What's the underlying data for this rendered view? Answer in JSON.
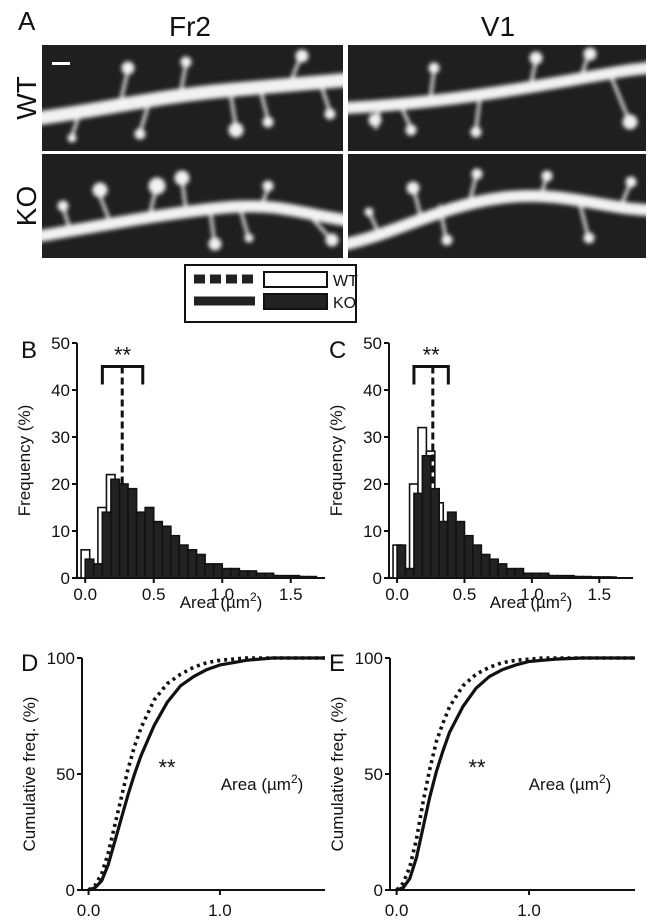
{
  "panel_a": {
    "letter": "A",
    "columns": [
      "Fr2",
      "V1"
    ],
    "rows": [
      "WT",
      "KO"
    ]
  },
  "legend": {
    "entries": [
      {
        "label": "WT",
        "line": "dashed",
        "bar": "open"
      },
      {
        "label": "KO",
        "line": "solid",
        "bar": "filled"
      }
    ]
  },
  "significance": "**",
  "chart_data": [
    {
      "panel": "B",
      "type": "bar",
      "xlabel": "Area (µm",
      "xlabel_sup": "2",
      "xlabel_end": ")",
      "ylabel": "Frequency (%)",
      "xlim": [
        -0.06,
        1.75
      ],
      "ylim": [
        0,
        50
      ],
      "xticks": [
        "0.0",
        "0.5",
        "1.0",
        "1.5"
      ],
      "yticks": [
        "0",
        "10",
        "20",
        "30",
        "40",
        "50"
      ],
      "bin_width": 0.0625,
      "series": [
        {
          "name": "WT",
          "style": "open",
          "x": [
            -0.03,
            0.0925,
            0.155,
            0.2175,
            0.28,
            0.3425,
            0.405,
            0.4675,
            0.53,
            0.5925,
            0.655,
            0.7175,
            0.78,
            0.8425,
            0.905,
            0.9675,
            1.03,
            1.0925,
            1.155,
            1.2175,
            1.28,
            1.3425,
            1.405,
            1.4675,
            1.53,
            1.5925
          ],
          "values": [
            6,
            15,
            22,
            20,
            17,
            12,
            10,
            8,
            6,
            5,
            4,
            3,
            2,
            2,
            2,
            1,
            1,
            1,
            1,
            0.5,
            0.5,
            0.5,
            0.3,
            0.3,
            0.3,
            0.2
          ]
        },
        {
          "name": "KO",
          "style": "filled",
          "x": [
            0.0,
            0.0625,
            0.125,
            0.1875,
            0.25,
            0.3125,
            0.375,
            0.4375,
            0.5,
            0.5625,
            0.625,
            0.6875,
            0.75,
            0.8125,
            0.875,
            0.9375,
            1.0,
            1.0625,
            1.125,
            1.1875,
            1.25,
            1.3125,
            1.375,
            1.4375,
            1.5,
            1.5625,
            1.625
          ],
          "values": [
            4,
            3,
            14,
            21,
            20,
            19,
            14,
            15,
            12,
            11,
            9,
            7,
            6,
            5,
            3,
            3,
            2,
            2,
            1.5,
            1.5,
            1,
            1,
            0.5,
            0.5,
            0.5,
            0.3,
            0.3
          ]
        }
      ],
      "bracket": {
        "x1": 0.125,
        "x2": 0.42,
        "y": 45
      },
      "median_line": {
        "x": 0.27,
        "y": 45
      },
      "annotation": "**"
    },
    {
      "panel": "C",
      "type": "bar",
      "xlabel": "Area (µm",
      "xlabel_sup": "2",
      "xlabel_end": ")",
      "ylabel": "Frequency (%)",
      "xlim": [
        -0.06,
        1.75
      ],
      "ylim": [
        0,
        50
      ],
      "xticks": [
        "0.0",
        "0.5",
        "1.0",
        "1.5"
      ],
      "yticks": [
        "0",
        "10",
        "20",
        "30",
        "40",
        "50"
      ],
      "bin_width": 0.0625,
      "series": [
        {
          "name": "WT",
          "style": "open",
          "x": [
            -0.03,
            0.0925,
            0.155,
            0.2175,
            0.28,
            0.3425,
            0.405,
            0.4675,
            0.53,
            0.5925,
            0.655,
            0.7175,
            0.78,
            0.8425,
            0.905,
            0.9675,
            1.03,
            1.0925,
            1.155,
            1.2175,
            1.28,
            1.3425,
            1.405,
            1.4675,
            1.53
          ],
          "values": [
            7,
            20,
            32,
            27,
            16,
            12,
            8,
            6,
            4,
            3,
            3,
            2,
            1,
            1,
            1,
            1,
            0.5,
            0.5,
            0.3,
            0.3,
            0.3,
            0.2,
            0.2,
            0.2,
            0.2
          ]
        },
        {
          "name": "KO",
          "style": "filled",
          "x": [
            0.0,
            0.0625,
            0.125,
            0.1875,
            0.25,
            0.3125,
            0.375,
            0.4375,
            0.5,
            0.5625,
            0.625,
            0.6875,
            0.75,
            0.8125,
            0.875,
            0.9375,
            1.0,
            1.0625,
            1.125,
            1.1875,
            1.25,
            1.3125,
            1.375,
            1.4375,
            1.5,
            1.5625
          ],
          "values": [
            7,
            2,
            18,
            26,
            19,
            12,
            14,
            12,
            9,
            7,
            5,
            4,
            3,
            2,
            2,
            1,
            1,
            1,
            0.5,
            0.5,
            0.5,
            0.3,
            0.3,
            0.2,
            0.2,
            0.2
          ]
        }
      ],
      "bracket": {
        "x1": 0.125,
        "x2": 0.38,
        "y": 45
      },
      "median_line": {
        "x": 0.265,
        "y": 45
      },
      "annotation": "**"
    },
    {
      "panel": "D",
      "type": "line",
      "xlabel": "Area (µm",
      "xlabel_sup": "2",
      "xlabel_end": ")",
      "ylabel": "Cumulative freq. (%)",
      "xlim": [
        -0.05,
        1.8
      ],
      "ylim": [
        0,
        100
      ],
      "xticks": [
        "0.0",
        "1.0"
      ],
      "yticks": [
        "0",
        "50",
        "100"
      ],
      "series": [
        {
          "name": "WT",
          "style": "dotted",
          "x": [
            0,
            0.05,
            0.1,
            0.15,
            0.2,
            0.25,
            0.3,
            0.35,
            0.4,
            0.5,
            0.6,
            0.7,
            0.8,
            0.9,
            1.0,
            1.1,
            1.2,
            1.4,
            1.8
          ],
          "values": [
            0,
            2,
            7,
            16,
            28,
            40,
            52,
            62,
            70,
            82,
            89,
            93,
            96,
            98,
            99,
            99.5,
            100,
            100,
            100
          ]
        },
        {
          "name": "KO",
          "style": "solid",
          "x": [
            0,
            0.05,
            0.1,
            0.15,
            0.2,
            0.25,
            0.3,
            0.35,
            0.4,
            0.5,
            0.6,
            0.7,
            0.8,
            0.9,
            1.0,
            1.1,
            1.2,
            1.4,
            1.8
          ],
          "values": [
            0,
            1,
            4,
            11,
            21,
            31,
            41,
            50,
            58,
            71,
            81,
            88,
            92,
            95,
            97,
            98,
            99,
            100,
            100
          ]
        }
      ],
      "annotation": "**"
    },
    {
      "panel": "E",
      "type": "line",
      "xlabel": "Area (µm",
      "xlabel_sup": "2",
      "xlabel_end": ")",
      "ylabel": "Cumulative freq. (%)",
      "xlim": [
        -0.05,
        1.8
      ],
      "ylim": [
        0,
        100
      ],
      "xticks": [
        "0.0",
        "1.0"
      ],
      "yticks": [
        "0",
        "50",
        "100"
      ],
      "series": [
        {
          "name": "WT",
          "style": "dotted",
          "x": [
            0,
            0.05,
            0.1,
            0.15,
            0.2,
            0.25,
            0.3,
            0.35,
            0.4,
            0.5,
            0.6,
            0.7,
            0.8,
            0.9,
            1.0,
            1.1,
            1.2,
            1.4,
            1.8
          ],
          "values": [
            0,
            3,
            10,
            22,
            38,
            52,
            64,
            72,
            79,
            88,
            93,
            96,
            98,
            99,
            99.5,
            100,
            100,
            100,
            100
          ]
        },
        {
          "name": "KO",
          "style": "solid",
          "x": [
            0,
            0.05,
            0.1,
            0.15,
            0.2,
            0.25,
            0.3,
            0.35,
            0.4,
            0.5,
            0.6,
            0.7,
            0.8,
            0.9,
            1.0,
            1.1,
            1.2,
            1.4,
            1.8
          ],
          "values": [
            0,
            1,
            5,
            14,
            27,
            40,
            51,
            60,
            68,
            79,
            87,
            92,
            95,
            97,
            98.5,
            99,
            99.5,
            100,
            100
          ]
        }
      ],
      "annotation": "**"
    }
  ]
}
